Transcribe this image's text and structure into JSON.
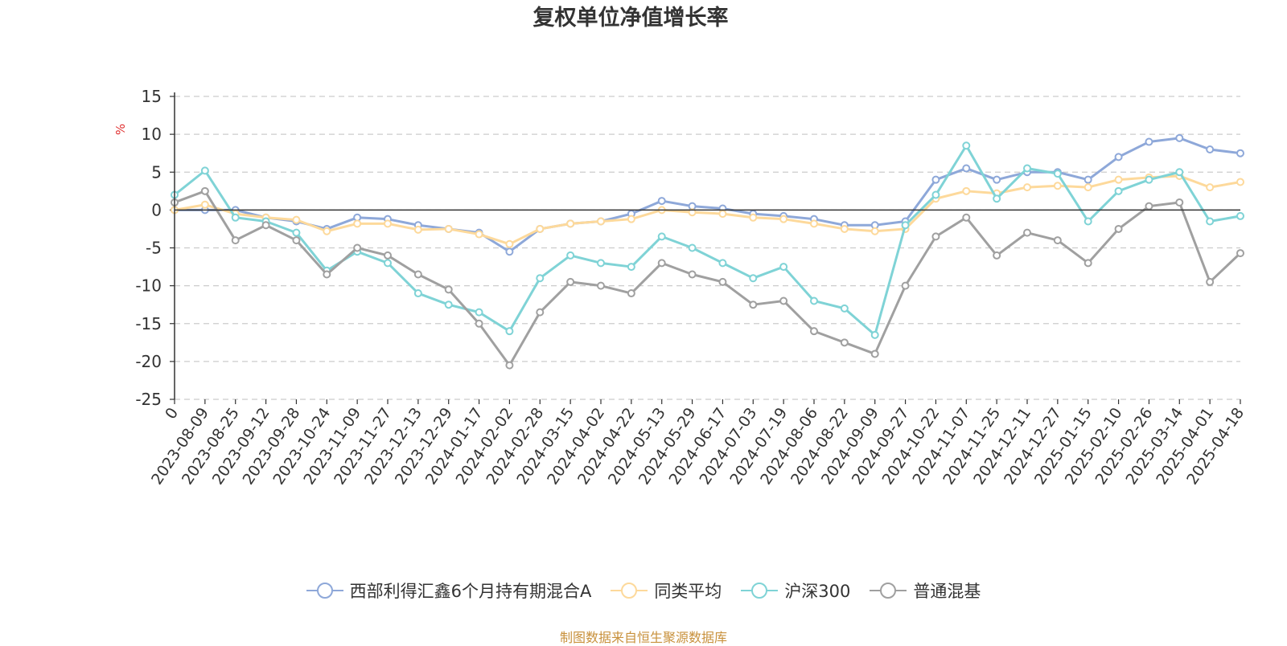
{
  "chart_data": {
    "type": "line",
    "title": "复权单位净值增长率",
    "ylabel": "%",
    "ylim": [
      -25,
      15
    ],
    "yticks": [
      15,
      10,
      5,
      0,
      -5,
      -10,
      -15,
      -20,
      -25
    ],
    "x_tick_labels": [
      "0",
      "2023-08-09",
      "2023-08-25",
      "2023-09-12",
      "2023-09-28",
      "2023-10-24",
      "2023-11-09",
      "2023-11-27",
      "2023-12-13",
      "2023-12-29",
      "2024-01-17",
      "2024-02-02",
      "2024-02-28",
      "2024-03-15",
      "2024-04-02",
      "2024-04-22",
      "2024-05-13",
      "2024-05-29",
      "2024-06-17",
      "2024-07-03",
      "2024-07-19",
      "2024-08-06",
      "2024-08-22",
      "2024-09-09",
      "2024-09-27",
      "2024-10-22",
      "2024-11-07",
      "2024-11-25",
      "2024-12-11",
      "2024-12-27",
      "2025-01-15",
      "2025-02-10",
      "2025-02-26",
      "2025-03-14",
      "2025-04-01",
      "2025-04-18"
    ],
    "grid": true,
    "legend_position": "bottom",
    "series": [
      {
        "name": "西部利得汇鑫6个月持有期混合A",
        "color": "#8ea8d9",
        "values": [
          0,
          0,
          0,
          -1,
          -1.5,
          -2.5,
          -1,
          -1.2,
          -2,
          -2.5,
          -3,
          -5.5,
          -2.5,
          -1.8,
          -1.5,
          -0.5,
          1.2,
          0.5,
          0.2,
          -0.5,
          -0.8,
          -1.2,
          -2,
          -2,
          -1.5,
          4,
          5.5,
          4,
          5,
          5,
          4,
          7,
          9,
          9.5,
          8,
          7.5
        ]
      },
      {
        "name": "同类平均",
        "color": "#fdd99b",
        "values": [
          0,
          0.7,
          -0.5,
          -1,
          -1.3,
          -2.8,
          -1.8,
          -1.8,
          -2.6,
          -2.5,
          -3.2,
          -4.5,
          -2.5,
          -1.8,
          -1.5,
          -1.2,
          0,
          -0.3,
          -0.5,
          -1,
          -1.2,
          -1.8,
          -2.5,
          -2.8,
          -2.5,
          1.5,
          2.5,
          2.2,
          3,
          3.2,
          3,
          4,
          4.3,
          4.5,
          3,
          3.7
        ]
      },
      {
        "name": "沪深300",
        "color": "#7fd3d6",
        "values": [
          2,
          5.2,
          -1,
          -1.5,
          -3,
          -8,
          -5.5,
          -7,
          -11,
          -12.5,
          -13.5,
          -16,
          -9,
          -6,
          -7,
          -7.5,
          -3.5,
          -5,
          -7,
          -9,
          -7.5,
          -12,
          -13,
          -16.5,
          -2,
          2,
          8.5,
          1.5,
          5.5,
          4.8,
          -1.5,
          2.5,
          4,
          5,
          -1.5,
          -0.8
        ]
      },
      {
        "name": "普通混基",
        "color": "#a0a0a0",
        "values": [
          1,
          2.5,
          -4,
          -2,
          -4,
          -8.5,
          -5,
          -6,
          -8.5,
          -10.5,
          -15,
          -20.5,
          -13.5,
          -9.5,
          -10,
          -11,
          -7,
          -8.5,
          -9.5,
          -12.5,
          -12,
          -16,
          -17.5,
          -19,
          -10,
          -3.5,
          -1,
          -6,
          -3,
          -4,
          -7,
          -2.5,
          0.5,
          1,
          -9.5,
          -5.7
        ]
      }
    ]
  },
  "legend_labels": [
    "西部利得汇鑫6个月持有期混合A",
    "同类平均",
    "沪深300",
    "普通混基"
  ],
  "source_note": "制图数据来自恒生聚源数据库"
}
